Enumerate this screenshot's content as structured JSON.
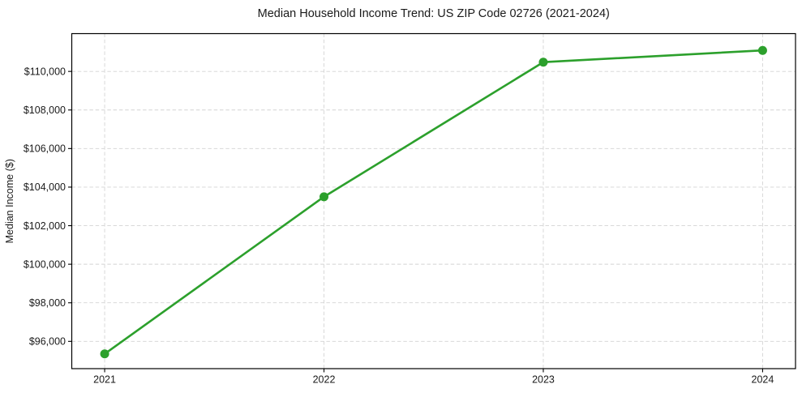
{
  "page": {
    "background_color": "#ffffff"
  },
  "chart_data": {
    "type": "line",
    "title": "Median Household Income Trend: US ZIP Code 02726 (2021-2024)",
    "xlabel": "",
    "ylabel": "Median Income ($)",
    "x": [
      2021,
      2022,
      2023,
      2024
    ],
    "x_tick_labels": [
      "2021",
      "2022",
      "2023",
      "2024"
    ],
    "series": [
      {
        "name": "median-household-income",
        "values": [
          95350,
          103500,
          110480,
          111090
        ],
        "color": "#2ca02c",
        "marker": "circle",
        "line_style": "solid"
      }
    ],
    "y_tick_values": [
      96000,
      98000,
      100000,
      102000,
      104000,
      106000,
      108000,
      110000
    ],
    "y_tick_labels": [
      "$96,000",
      "$98,000",
      "$100,000",
      "$102,000",
      "$104,000",
      "$106,000",
      "$108,000",
      "$110,000"
    ],
    "xlim": [
      2020.85,
      2024.15
    ],
    "ylim": [
      94585,
      111960
    ],
    "grid": {
      "visible": true,
      "style": "dashed",
      "color": "#d4d4d4"
    },
    "legend": {
      "visible": false
    },
    "axis_color": "#000000",
    "text_color": "#1a1a1a",
    "plot_background": "#ffffff"
  }
}
